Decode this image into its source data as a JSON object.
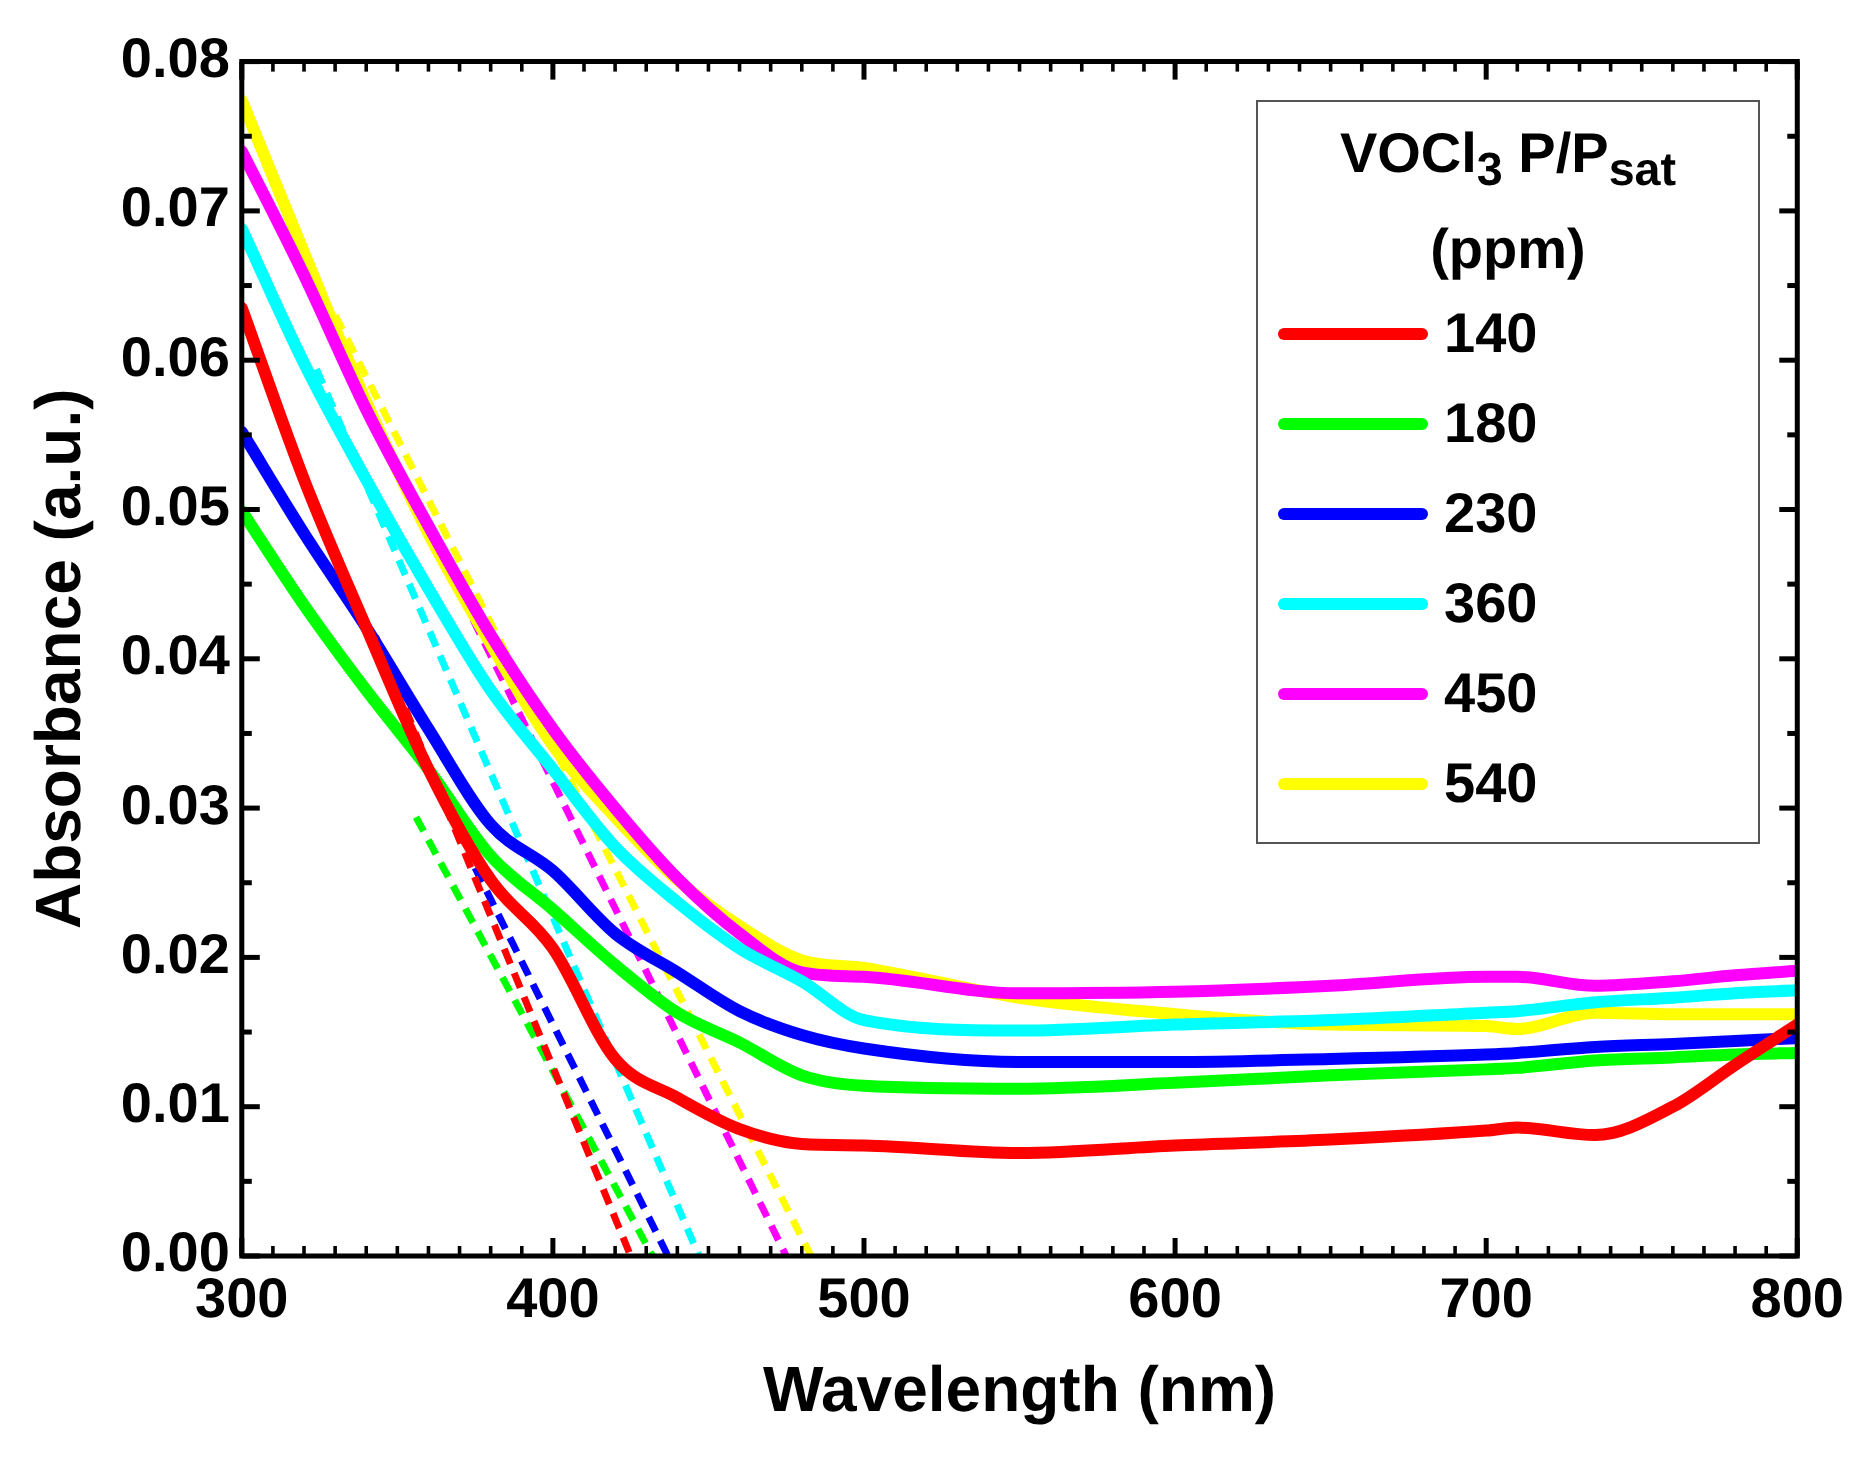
{
  "chart_data": {
    "type": "line",
    "xlabel": "Wavelength (nm)",
    "ylabel": "Absorbance (a.u.)",
    "legend_title": "VOCl$_{3}$ P/P$_{sat}$ (ppm)",
    "legend": "top right",
    "grid": false,
    "marker": "none",
    "line_style": "solid",
    "x": [
      300,
      320,
      340,
      360,
      380,
      400,
      420,
      440,
      460,
      480,
      500,
      550,
      600,
      650,
      700,
      710,
      735,
      760,
      780,
      800
    ],
    "xlim": [
      300,
      800
    ],
    "xticks": [
      300,
      400,
      500,
      600,
      700,
      800
    ],
    "ylim": [
      0,
      0.08
    ],
    "yticks": [
      {
        "value": 0,
        "label": "0.00"
      },
      0.01,
      0.02,
      0.03,
      0.04,
      0.05,
      0.06,
      0.07,
      0.08
    ],
    "series": [
      {
        "name": "140",
        "color": "#ff0000",
        "values": [
          0.0635,
          0.052,
          0.0421,
          0.0326,
          0.0252,
          0.0206,
          0.0132,
          0.0106,
          0.0085,
          0.0075,
          0.0074,
          0.0069,
          0.0074,
          0.0078,
          0.0084,
          0.0086,
          0.0081,
          0.01,
          0.0128,
          0.0155
        ]
      },
      {
        "name": "180",
        "color": "#00ff00",
        "values": [
          0.0499,
          0.0436,
          0.0379,
          0.0326,
          0.0268,
          0.0232,
          0.0195,
          0.0163,
          0.0143,
          0.0121,
          0.0114,
          0.0112,
          0.0116,
          0.0121,
          0.0125,
          0.0126,
          0.0131,
          0.0133,
          0.0135,
          0.0136
        ]
      },
      {
        "name": "230",
        "color": "#0000ff",
        "values": [
          0.0552,
          0.0484,
          0.0421,
          0.0353,
          0.0289,
          0.0258,
          0.0216,
          0.019,
          0.0164,
          0.0148,
          0.0139,
          0.013,
          0.013,
          0.0132,
          0.0135,
          0.0136,
          0.014,
          0.0142,
          0.0144,
          0.0146
        ]
      },
      {
        "name": "360",
        "color": "#00ffff",
        "values": [
          0.0688,
          0.0598,
          0.052,
          0.0447,
          0.0379,
          0.0326,
          0.0274,
          0.0237,
          0.0206,
          0.0184,
          0.0158,
          0.0151,
          0.0155,
          0.0158,
          0.0163,
          0.0164,
          0.017,
          0.0173,
          0.0176,
          0.0178
        ]
      },
      {
        "name": "450",
        "color": "#ff00ff",
        "values": [
          0.074,
          0.0657,
          0.0567,
          0.0489,
          0.0416,
          0.0353,
          0.03,
          0.0253,
          0.0216,
          0.019,
          0.0187,
          0.0176,
          0.0177,
          0.0181,
          0.0187,
          0.0187,
          0.0181,
          0.0184,
          0.0188,
          0.0191
        ]
      },
      {
        "name": "540",
        "color": "#ffff00",
        "values": [
          0.0774,
          0.0672,
          0.0572,
          0.0484,
          0.041,
          0.0342,
          0.0294,
          0.0252,
          0.0221,
          0.0198,
          0.0193,
          0.0173,
          0.0162,
          0.0155,
          0.0154,
          0.0152,
          0.0163,
          0.0162,
          0.0162,
          0.0162
        ]
      },
      {
        "color": "#ff0000",
        "line_style": "dashed",
        "x": [
          343,
          425
        ],
        "values": [
          0.0415,
          0
        ]
      },
      {
        "color": "#00ff00",
        "line_style": "dashed",
        "x": [
          356,
          432
        ],
        "values": [
          0.0294,
          0
        ]
      },
      {
        "color": "#0000ff",
        "line_style": "dashed",
        "x": [
          375,
          437
        ],
        "values": [
          0.026,
          0
        ]
      },
      {
        "color": "#00ffff",
        "line_style": "dashed",
        "x": [
          324,
          447
        ],
        "values": [
          0.0594,
          0
        ]
      },
      {
        "color": "#ff00ff",
        "line_style": "dashed",
        "x": [
          330,
          475
        ],
        "values": [
          0.0614,
          0
        ]
      },
      {
        "color": "#ffff00",
        "line_style": "dashed",
        "x": [
          330,
          483
        ],
        "values": [
          0.063,
          0
        ]
      }
    ]
  }
}
